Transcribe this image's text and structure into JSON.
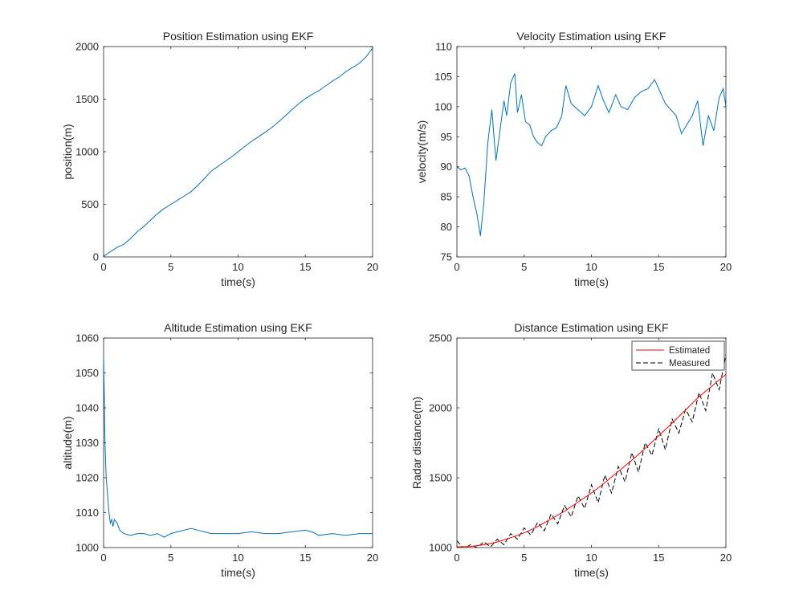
{
  "colors": {
    "line": "#0072BD",
    "axis": "#262626",
    "estimated": "#FF0000",
    "measured": "#000000",
    "background": "#FFFFFF"
  },
  "chart_data": [
    {
      "type": "line",
      "title": "Position Estimation using EKF",
      "xlabel": "time(s)",
      "ylabel": "position(m)",
      "xlim": [
        0,
        20
      ],
      "ylim": [
        0,
        2000
      ],
      "xticks": [
        0,
        5,
        10,
        15,
        20
      ],
      "yticks": [
        0,
        500,
        1000,
        1500,
        2000
      ],
      "grid": false,
      "series": [
        {
          "x": [
            0,
            0.5,
            1,
            1.5,
            2,
            2.5,
            3,
            3.5,
            4,
            4.5,
            5,
            5.5,
            6,
            6.5,
            7,
            7.5,
            8,
            8.5,
            9,
            9.5,
            10,
            10.5,
            11,
            11.5,
            12,
            12.5,
            13,
            13.5,
            14,
            14.5,
            15,
            15.5,
            16,
            16.5,
            17,
            17.5,
            18,
            18.5,
            19,
            19.5,
            20
          ],
          "y": [
            5,
            50,
            90,
            120,
            175,
            240,
            290,
            350,
            410,
            460,
            500,
            540,
            580,
            620,
            680,
            745,
            815,
            860,
            905,
            950,
            1000,
            1050,
            1100,
            1140,
            1185,
            1230,
            1285,
            1340,
            1400,
            1455,
            1505,
            1545,
            1580,
            1625,
            1670,
            1710,
            1760,
            1800,
            1840,
            1900,
            1985
          ]
        }
      ]
    },
    {
      "type": "line",
      "title": "Velocity Estimation using EKF",
      "xlabel": "time(s)",
      "ylabel": "velocity(m/s)",
      "xlim": [
        0,
        20
      ],
      "ylim": [
        75,
        110
      ],
      "xticks": [
        0,
        5,
        10,
        15,
        20
      ],
      "yticks": [
        75,
        80,
        85,
        90,
        95,
        100,
        105,
        110
      ],
      "grid": false,
      "series": [
        {
          "x": [
            0,
            0.3,
            0.6,
            0.9,
            1.2,
            1.5,
            1.75,
            2.0,
            2.3,
            2.6,
            2.9,
            3.2,
            3.5,
            3.7,
            4.0,
            4.3,
            4.5,
            4.8,
            5.1,
            5.4,
            5.7,
            6.0,
            6.3,
            6.6,
            7.0,
            7.4,
            7.8,
            8.1,
            8.5,
            9.0,
            9.5,
            10.0,
            10.5,
            10.9,
            11.3,
            11.8,
            12.2,
            12.7,
            13.2,
            13.7,
            14.2,
            14.7,
            15.1,
            15.5,
            15.9,
            16.3,
            16.7,
            17.1,
            17.5,
            17.9,
            18.3,
            18.7,
            19.1,
            19.5,
            19.8,
            20
          ],
          "y": [
            90,
            89.5,
            89.8,
            88.5,
            85,
            82,
            78.5,
            84,
            94,
            99.5,
            91,
            96,
            101,
            98.5,
            104,
            105.5,
            99,
            102,
            97.5,
            97,
            95,
            94,
            93.5,
            95,
            96,
            96.5,
            98.5,
            103.5,
            100.5,
            99.5,
            98.5,
            100,
            103.5,
            101,
            99,
            102,
            100,
            99.5,
            101.5,
            102.5,
            103,
            104.5,
            102.5,
            100.5,
            99.5,
            98.5,
            95.5,
            97,
            98.5,
            101,
            93.5,
            98.5,
            96,
            101.5,
            103,
            100
          ]
        }
      ]
    },
    {
      "type": "line",
      "title": "Altitude Estimation using EKF",
      "xlabel": "time(s)",
      "ylabel": "altitude(m)",
      "xlim": [
        0,
        20
      ],
      "ylim": [
        1000,
        1060
      ],
      "xticks": [
        0,
        5,
        10,
        15,
        20
      ],
      "yticks": [
        1000,
        1010,
        1020,
        1030,
        1040,
        1050,
        1060
      ],
      "grid": false,
      "series": [
        {
          "x": [
            0,
            0.05,
            0.1,
            0.2,
            0.3,
            0.4,
            0.5,
            0.6,
            0.7,
            0.8,
            1.0,
            1.2,
            1.5,
            2.0,
            2.5,
            3.0,
            3.5,
            4.0,
            4.5,
            5.0,
            5.5,
            6.0,
            6.5,
            7.0,
            7.5,
            8.0,
            9.0,
            10.0,
            11.0,
            12.0,
            13.0,
            14.0,
            15.0,
            15.5,
            16.0,
            17.0,
            18.0,
            19.0,
            20.0
          ],
          "y": [
            1055,
            1045,
            1030,
            1020,
            1015,
            1010,
            1007,
            1008,
            1006,
            1008,
            1007,
            1005,
            1004,
            1003.5,
            1004,
            1004,
            1003.5,
            1004,
            1003,
            1004,
            1004.5,
            1005,
            1005.5,
            1005,
            1004.5,
            1004,
            1004,
            1004,
            1004.5,
            1004,
            1004,
            1004.5,
            1005,
            1004.5,
            1003.5,
            1004,
            1003.5,
            1004,
            1004
          ]
        }
      ]
    },
    {
      "type": "line",
      "title": "Distance Estimation using EKF",
      "xlabel": "time(s)",
      "ylabel": "Radar distance(m)",
      "xlim": [
        0,
        20
      ],
      "ylim": [
        1000,
        2500
      ],
      "xticks": [
        0,
        5,
        10,
        15,
        20
      ],
      "yticks": [
        1000,
        1500,
        2000,
        2500
      ],
      "grid": false,
      "legend": "top-right",
      "series": [
        {
          "name": "Estimated",
          "style": "solid",
          "x": [
            0,
            1,
            2,
            3,
            4,
            5,
            6,
            7,
            8,
            9,
            10,
            11,
            12,
            13,
            14,
            15,
            16,
            17,
            18,
            19,
            20
          ],
          "y": [
            1005,
            1008,
            1020,
            1040,
            1070,
            1105,
            1150,
            1205,
            1260,
            1325,
            1390,
            1465,
            1545,
            1625,
            1710,
            1800,
            1890,
            1985,
            2080,
            2160,
            2240
          ]
        },
        {
          "name": "Measured",
          "style": "dashed",
          "x": [
            0,
            0.5,
            1,
            1.5,
            2,
            2.5,
            3,
            3.5,
            4,
            4.5,
            5,
            5.5,
            6,
            6.5,
            7,
            7.5,
            8,
            8.5,
            9,
            9.5,
            10,
            10.5,
            11,
            11.5,
            12,
            12.5,
            13,
            13.5,
            14,
            14.5,
            15,
            15.5,
            16,
            16.5,
            17,
            17.5,
            18,
            18.5,
            19,
            19.5,
            20
          ],
          "y": [
            1050,
            990,
            1020,
            1000,
            1040,
            1005,
            1060,
            1020,
            1100,
            1060,
            1140,
            1090,
            1180,
            1120,
            1240,
            1170,
            1300,
            1220,
            1370,
            1280,
            1450,
            1320,
            1520,
            1390,
            1580,
            1470,
            1680,
            1540,
            1750,
            1660,
            1850,
            1700,
            1920,
            1820,
            1990,
            1900,
            2110,
            1980,
            2250,
            2130,
            2380
          ]
        }
      ]
    }
  ]
}
